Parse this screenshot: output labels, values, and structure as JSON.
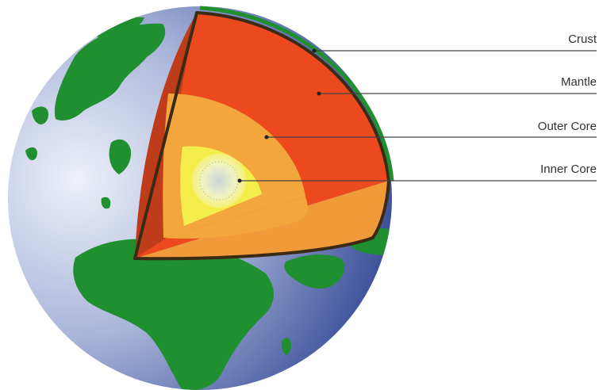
{
  "labels": {
    "crust": "Crust",
    "mantle": "Mantle",
    "outer_core": "Outer Core",
    "inner_core": "Inner Core"
  },
  "colors": {
    "ocean_light": "#dde4f2",
    "ocean_dark": "#2a3f8f",
    "land": "#1f8f2f",
    "crust": "#5a3a1c",
    "mantle": "#ec4a1e",
    "outer_core": "#f3a23a",
    "inner_core": "#f4ee4c",
    "leader_line": "#444444"
  }
}
